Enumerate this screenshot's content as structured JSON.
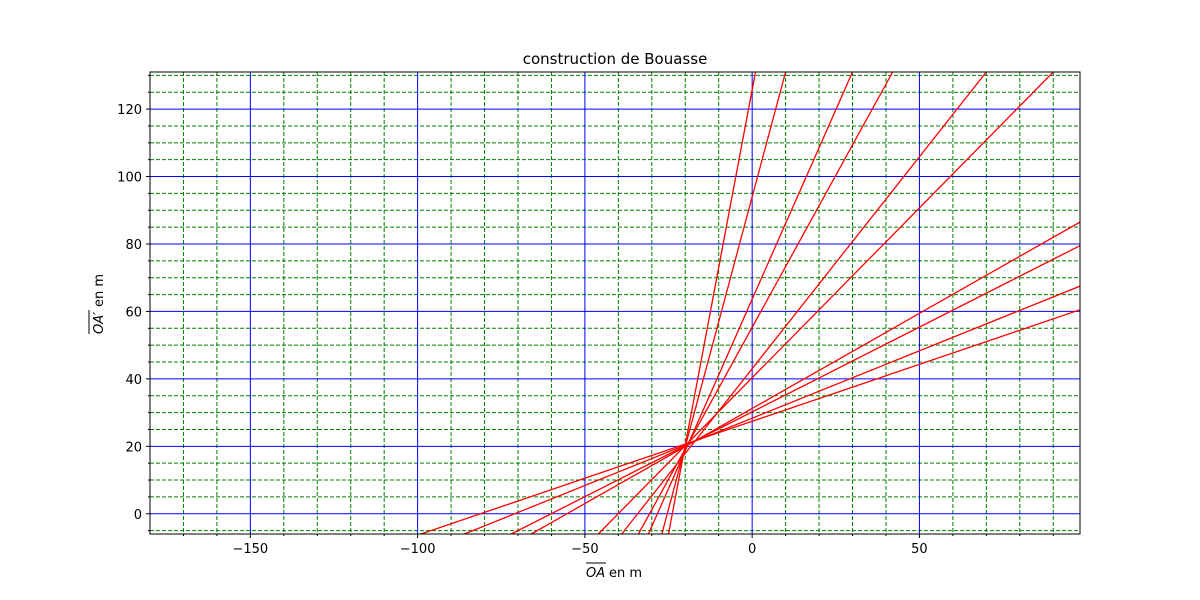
{
  "chart_data": {
    "type": "line",
    "title": "construction de Bouasse",
    "xlabel": {
      "symbol": "OA",
      "suffix": " en m"
    },
    "ylabel": {
      "symbol": "OA′",
      "suffix": " en m"
    },
    "xlim": [
      -180,
      98
    ],
    "ylim": [
      -6,
      131
    ],
    "x_major_ticks": [
      -150,
      -100,
      -50,
      0,
      50
    ],
    "x_major_tick_labels": [
      "−150",
      "−100",
      "−50",
      "0",
      "50"
    ],
    "x_minor_ticks": [
      -170,
      -160,
      -140,
      -130,
      -120,
      -110,
      -90,
      -80,
      -70,
      -60,
      -40,
      -30,
      -20,
      -10,
      10,
      20,
      30,
      40,
      60,
      70,
      80,
      90
    ],
    "y_major_ticks": [
      0,
      20,
      40,
      60,
      80,
      100,
      120
    ],
    "y_major_tick_labels": [
      "0",
      "20",
      "40",
      "60",
      "80",
      "100",
      "120"
    ],
    "y_minor_ticks": [
      -5,
      5,
      10,
      15,
      25,
      30,
      35,
      45,
      50,
      55,
      65,
      70,
      75,
      85,
      90,
      95,
      105,
      110,
      115,
      125,
      130
    ],
    "grid": {
      "major": true,
      "minor": true,
      "major_color": "#0000ff",
      "minor_color": "#008000",
      "minor_style": "dashed"
    },
    "line_color": "#ff0000",
    "series": [
      {
        "x": [
          -99,
          98
        ],
        "y": [
          -6,
          60.5
        ]
      },
      {
        "x": [
          -86,
          98
        ],
        "y": [
          -6,
          67.5
        ]
      },
      {
        "x": [
          -72,
          98
        ],
        "y": [
          -6,
          79.5
        ]
      },
      {
        "x": [
          -66,
          98
        ],
        "y": [
          -6,
          86.5
        ]
      },
      {
        "x": [
          -46,
          90
        ],
        "y": [
          -6,
          131
        ]
      },
      {
        "x": [
          -39,
          70
        ],
        "y": [
          -6,
          131
        ]
      },
      {
        "x": [
          -34,
          42
        ],
        "y": [
          -6,
          131
        ]
      },
      {
        "x": [
          -31,
          30
        ],
        "y": [
          -6,
          131
        ]
      },
      {
        "x": [
          -27,
          10
        ],
        "y": [
          -6,
          131
        ]
      },
      {
        "x": [
          -25,
          1
        ],
        "y": [
          -6,
          131
        ]
      }
    ]
  }
}
